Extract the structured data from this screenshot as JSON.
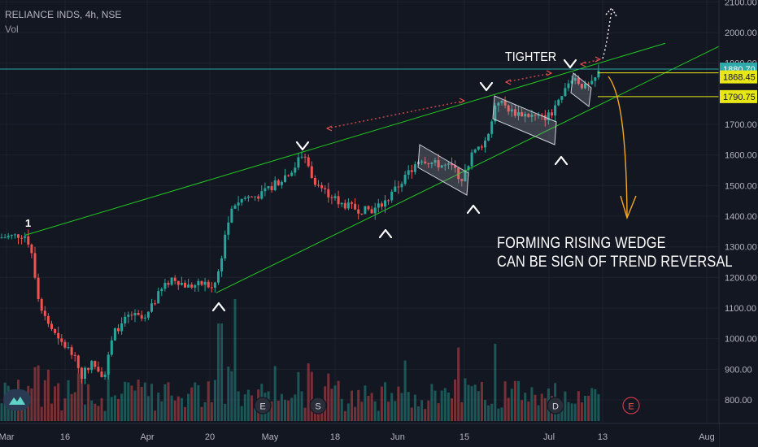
{
  "legend": {
    "symbol": "RELIANCE INDS, 4h, NSE",
    "volume": "Vol"
  },
  "annotations": {
    "wedge_text_line1": "FORMING RISING WEDGE",
    "wedge_text_line2": "CAN BE SIGN OF TREND REVERSAL",
    "tighter": "TIGHTER",
    "wave_number": "1"
  },
  "event_markers": [
    {
      "letter": "E",
      "date_label": "May"
    },
    {
      "letter": "S",
      "date_label": "May"
    },
    {
      "letter": "D",
      "date_label": "Jul"
    },
    {
      "letter": "E",
      "date_label": "Jul"
    }
  ],
  "colors": {
    "background": "#131722",
    "up": "#26a69a",
    "down": "#ef5350",
    "trendline": "#21c821",
    "dotted_line": "#ef5350",
    "price_line": "#2ea8a8",
    "level_line": "#e7e716",
    "projection": "#f5a623",
    "channel": "#9598a1"
  },
  "chart_data": {
    "type": "candlestick",
    "title": "RELIANCE INDS, 4h, NSE",
    "ylim": [
      760,
      2120
    ],
    "y_ticks": [
      800,
      900,
      1000,
      1100,
      1200,
      1300,
      1400,
      1500,
      1600,
      1700,
      1800,
      1900,
      2000,
      2100
    ],
    "y_tick_labels": [
      "800.00",
      "900.00",
      "1000.00",
      "1100.00",
      "1200.00",
      "1300.00",
      "1400.00",
      "1500.00",
      "1600.00",
      "1700.00",
      "1800.00",
      "1900.00",
      "2000.00",
      "2100.00"
    ],
    "x_ticks": [
      "Mar",
      "16",
      "Apr",
      "20",
      "May",
      "18",
      "Jun",
      "15",
      "Jul",
      "13",
      "Aug"
    ],
    "price_labels": [
      {
        "value": 1880.7,
        "text": "1880.70",
        "style": "last"
      },
      {
        "value": 1868.45,
        "text": "1868.45",
        "style": "level"
      },
      {
        "value": 1790.75,
        "text": "1790.75",
        "style": "level"
      }
    ],
    "key_closes": [
      {
        "label": "Early Mar",
        "value": 1340
      },
      {
        "label": "Late Mar low",
        "value": 880
      },
      {
        "label": "Apr 20 low",
        "value": 1160
      },
      {
        "label": "Early May high",
        "value": 1610
      },
      {
        "label": "Mid May low",
        "value": 1410
      },
      {
        "label": "Early Jun high",
        "value": 1580
      },
      {
        "label": "Mid Jun low",
        "value": 1490
      },
      {
        "label": "Jun 19 high",
        "value": 1780
      },
      {
        "label": "Late Jun low",
        "value": 1700
      },
      {
        "label": "Jul high",
        "value": 1880.7
      }
    ],
    "grid": true,
    "legend": "top-left"
  }
}
